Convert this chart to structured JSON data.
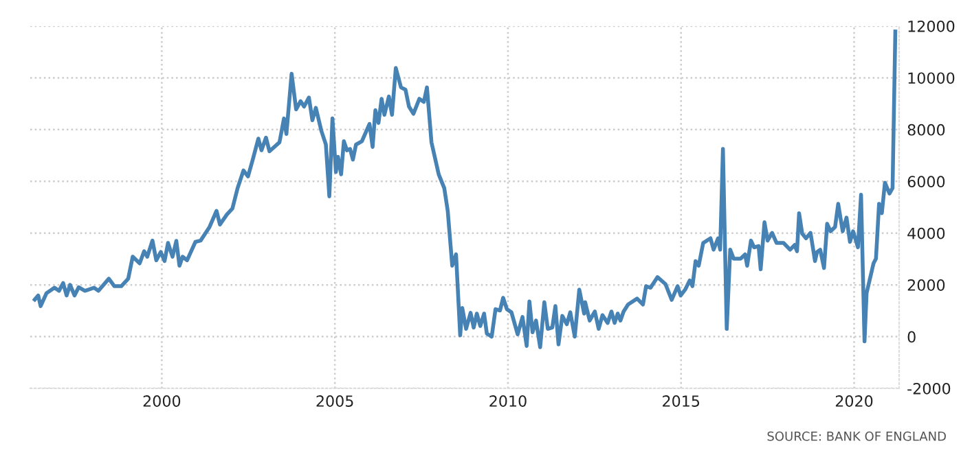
{
  "chart_data": {
    "type": "line",
    "x": [
      1996.33,
      1996.43,
      1996.5,
      1996.67,
      1996.9,
      1997.03,
      1997.15,
      1997.25,
      1997.35,
      1997.48,
      1997.6,
      1997.78,
      1998.04,
      1998.17,
      1998.47,
      1998.63,
      1998.83,
      1999.03,
      1999.16,
      1999.36,
      1999.49,
      1999.58,
      1999.73,
      1999.84,
      1999.97,
      2000.08,
      2000.18,
      2000.31,
      2000.42,
      2000.51,
      2000.6,
      2000.73,
      2000.97,
      2001.12,
      2001.38,
      2001.58,
      2001.68,
      2001.88,
      2002.04,
      2002.19,
      2002.36,
      2002.49,
      2002.62,
      2002.79,
      2002.88,
      2003.01,
      2003.11,
      2003.4,
      2003.53,
      2003.6,
      2003.75,
      2003.88,
      2004.01,
      2004.11,
      2004.25,
      2004.35,
      2004.45,
      2004.61,
      2004.74,
      2004.84,
      2004.93,
      2005.03,
      2005.09,
      2005.18,
      2005.26,
      2005.35,
      2005.44,
      2005.52,
      2005.61,
      2005.78,
      2006.0,
      2006.09,
      2006.17,
      2006.26,
      2006.35,
      2006.43,
      2006.56,
      2006.65,
      2006.76,
      2006.91,
      2007.04,
      2007.14,
      2007.27,
      2007.44,
      2007.57,
      2007.66,
      2007.79,
      2008.0,
      2008.16,
      2008.26,
      2008.39,
      2008.5,
      2008.62,
      2008.68,
      2008.79,
      2008.92,
      2009.01,
      2009.1,
      2009.2,
      2009.31,
      2009.39,
      2009.53,
      2009.64,
      2009.77,
      2009.86,
      2009.97,
      2010.1,
      2010.28,
      2010.42,
      2010.54,
      2010.62,
      2010.71,
      2010.81,
      2010.93,
      2011.05,
      2011.15,
      2011.28,
      2011.37,
      2011.46,
      2011.57,
      2011.7,
      2011.8,
      2011.93,
      2012.06,
      2012.2,
      2012.23,
      2012.36,
      2012.51,
      2012.62,
      2012.73,
      2012.88,
      2012.99,
      2013.08,
      2013.17,
      2013.25,
      2013.34,
      2013.47,
      2013.73,
      2013.9,
      2013.99,
      2014.12,
      2014.32,
      2014.55,
      2014.73,
      2014.9,
      2014.99,
      2015.12,
      2015.25,
      2015.33,
      2015.42,
      2015.51,
      2015.64,
      2015.85,
      2015.94,
      2016.07,
      2016.13,
      2016.21,
      2016.32,
      2016.42,
      2016.52,
      2016.72,
      2016.85,
      2016.91,
      2017.02,
      2017.11,
      2017.24,
      2017.3,
      2017.41,
      2017.5,
      2017.63,
      2017.76,
      2017.96,
      2018.15,
      2018.28,
      2018.35,
      2018.41,
      2018.5,
      2018.61,
      2018.74,
      2018.87,
      2018.93,
      2019.02,
      2019.13,
      2019.22,
      2019.32,
      2019.45,
      2019.54,
      2019.67,
      2019.78,
      2019.88,
      2019.97,
      2020.11,
      2020.2,
      2020.3,
      2020.36,
      2020.56,
      2020.63,
      2020.72,
      2020.8,
      2020.89,
      2021.02,
      2021.11,
      2021.19
    ],
    "series": [
      {
        "color": "#4682b4",
        "values": [
          1430,
          1590,
          1180,
          1680,
          1890,
          1770,
          2070,
          1590,
          2000,
          1590,
          1910,
          1770,
          1890,
          1770,
          2240,
          1950,
          1950,
          2240,
          3090,
          2830,
          3300,
          3090,
          3710,
          2950,
          3270,
          2920,
          3620,
          3090,
          3700,
          2740,
          3090,
          2950,
          3660,
          3710,
          4240,
          4860,
          4330,
          4720,
          4950,
          5740,
          6420,
          6190,
          6800,
          7650,
          7200,
          7690,
          7160,
          7510,
          8430,
          7830,
          10160,
          8780,
          9100,
          8890,
          9240,
          8360,
          8840,
          7950,
          7420,
          5420,
          8430,
          6360,
          6950,
          6270,
          7550,
          7200,
          7250,
          6840,
          7420,
          7550,
          8220,
          7330,
          8750,
          8260,
          9190,
          8570,
          9280,
          8570,
          10380,
          9630,
          9540,
          8890,
          8610,
          9190,
          9070,
          9630,
          7510,
          6270,
          5740,
          4860,
          2740,
          3180,
          50,
          1110,
          300,
          920,
          350,
          890,
          410,
          890,
          120,
          0,
          1060,
          1010,
          1500,
          1060,
          940,
          90,
          760,
          -360,
          1360,
          170,
          620,
          -410,
          1330,
          300,
          350,
          1180,
          -300,
          800,
          480,
          940,
          0,
          1820,
          890,
          1330,
          620,
          970,
          300,
          830,
          530,
          970,
          530,
          890,
          620,
          970,
          1240,
          1470,
          1240,
          1950,
          1890,
          2300,
          2030,
          1420,
          1950,
          1590,
          1820,
          2170,
          1950,
          2920,
          2740,
          3620,
          3800,
          3360,
          3800,
          3360,
          7250,
          300,
          3360,
          3010,
          3010,
          3180,
          2740,
          3710,
          3450,
          3500,
          2600,
          4420,
          3710,
          4010,
          3620,
          3620,
          3360,
          3540,
          3300,
          4770,
          3980,
          3800,
          4010,
          2920,
          3270,
          3360,
          2650,
          4360,
          4070,
          4240,
          5130,
          4070,
          4600,
          3660,
          4070,
          3450,
          5480,
          -180,
          1680,
          2830,
          3010,
          5130,
          4770,
          5950,
          5530,
          5740,
          11790
        ]
      }
    ],
    "xlim": [
      1996.2,
      2021.3
    ],
    "xticks": [
      2000,
      2005,
      2010,
      2015,
      2020
    ],
    "ylim": [
      -2000,
      12000
    ],
    "yticks": [
      -2000,
      0,
      2000,
      4000,
      6000,
      8000,
      10000,
      12000
    ],
    "grid": true,
    "annotations": [
      "SOURCE: BANK OF ENGLAND"
    ]
  }
}
